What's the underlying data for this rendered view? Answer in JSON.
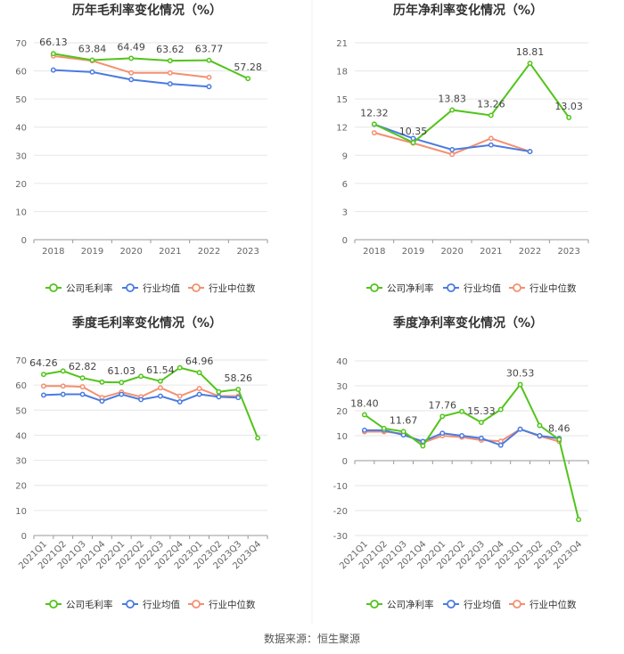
{
  "footer": {
    "source": "数据来源：恒生聚源"
  },
  "colors": {
    "company": "#52c41a",
    "industry_avg": "#4a7be0",
    "industry_median": "#f39070",
    "grid": "#e6e6e6",
    "axis": "#666666"
  },
  "chart_data": [
    {
      "type": "line",
      "title": "历年毛利率变化情况（%）",
      "categories": [
        "2018",
        "2019",
        "2020",
        "2021",
        "2022",
        "2023"
      ],
      "ylim": [
        0,
        70
      ],
      "yticks": [
        0,
        10,
        20,
        30,
        40,
        50,
        60,
        70
      ],
      "series": [
        {
          "name": "公司毛利率",
          "key": "company",
          "values": [
            66.13,
            63.84,
            64.49,
            63.62,
            63.77,
            57.28
          ]
        },
        {
          "name": "行业均值",
          "key": "industry_avg",
          "values": [
            60.3,
            59.6,
            56.9,
            55.4,
            54.4,
            null
          ]
        },
        {
          "name": "行业中位数",
          "key": "industry_median",
          "values": [
            65.3,
            63.6,
            59.3,
            59.3,
            57.7,
            null
          ]
        }
      ],
      "labels": [
        {
          "index": 0,
          "text": "66.13"
        },
        {
          "index": 1,
          "text": "63.84"
        },
        {
          "index": 2,
          "text": "64.49"
        },
        {
          "index": 3,
          "text": "63.62"
        },
        {
          "index": 4,
          "text": "63.77"
        },
        {
          "index": 5,
          "text": "57.28"
        }
      ]
    },
    {
      "type": "line",
      "title": "历年净利率变化情况（%）",
      "categories": [
        "2018",
        "2019",
        "2020",
        "2021",
        "2022",
        "2023"
      ],
      "ylim": [
        0,
        21
      ],
      "yticks": [
        0,
        3,
        6,
        9,
        12,
        15,
        18,
        21
      ],
      "series": [
        {
          "name": "公司净利率",
          "key": "company",
          "values": [
            12.32,
            10.35,
            13.83,
            13.26,
            18.81,
            13.03
          ]
        },
        {
          "name": "行业均值",
          "key": "industry_avg",
          "values": [
            12.3,
            10.8,
            9.6,
            10.1,
            9.4,
            null
          ]
        },
        {
          "name": "行业中位数",
          "key": "industry_median",
          "values": [
            11.4,
            10.3,
            9.1,
            10.8,
            9.4,
            null
          ]
        }
      ],
      "labels": [
        {
          "index": 0,
          "text": "12.32"
        },
        {
          "index": 1,
          "text": "10.35"
        },
        {
          "index": 2,
          "text": "13.83"
        },
        {
          "index": 3,
          "text": "13.26"
        },
        {
          "index": 4,
          "text": "18.81"
        },
        {
          "index": 5,
          "text": "13.03"
        }
      ]
    },
    {
      "type": "line",
      "title": "季度毛利率变化情况（%）",
      "categories": [
        "2021Q1",
        "2021Q2",
        "2021Q3",
        "2021Q4",
        "2022Q1",
        "2022Q2",
        "2022Q3",
        "2022Q4",
        "2023Q1",
        "2023Q2",
        "2023Q3",
        "2023Q4"
      ],
      "ylim": [
        0,
        70
      ],
      "yticks": [
        0,
        10,
        20,
        30,
        40,
        50,
        60,
        70
      ],
      "series": [
        {
          "name": "公司毛利率",
          "key": "company",
          "values": [
            64.26,
            65.6,
            62.82,
            61.2,
            61.03,
            63.5,
            61.54,
            66.9,
            64.96,
            57.3,
            58.26,
            38.9
          ]
        },
        {
          "name": "行业均值",
          "key": "industry_avg",
          "values": [
            56.0,
            56.3,
            56.3,
            53.6,
            56.3,
            54.2,
            55.6,
            53.3,
            56.3,
            55.3,
            55.0,
            null
          ]
        },
        {
          "name": "行业中位数",
          "key": "industry_median",
          "values": [
            59.6,
            59.6,
            59.3,
            55.0,
            57.2,
            55.3,
            58.9,
            55.6,
            58.6,
            55.6,
            55.6,
            null
          ]
        }
      ],
      "labels": [
        {
          "index": 0,
          "text": "64.26"
        },
        {
          "index": 2,
          "text": "62.82"
        },
        {
          "index": 4,
          "text": "61.03"
        },
        {
          "index": 6,
          "text": "61.54"
        },
        {
          "index": 8,
          "text": "64.96"
        },
        {
          "index": 10,
          "text": "58.26"
        }
      ]
    },
    {
      "type": "line",
      "title": "季度净利率变化情况（%）",
      "categories": [
        "2021Q1",
        "2021Q2",
        "2021Q3",
        "2021Q4",
        "2022Q1",
        "2022Q2",
        "2022Q3",
        "2022Q4",
        "2023Q1",
        "2023Q2",
        "2023Q3",
        "2023Q4"
      ],
      "ylim": [
        -30,
        40
      ],
      "yticks": [
        -30,
        -20,
        -10,
        0,
        10,
        20,
        30,
        40
      ],
      "series": [
        {
          "name": "公司净利率",
          "key": "company",
          "values": [
            18.4,
            12.9,
            11.67,
            5.9,
            17.76,
            19.7,
            15.33,
            20.5,
            30.53,
            14.1,
            8.46,
            -23.6
          ]
        },
        {
          "name": "行业均值",
          "key": "industry_avg",
          "values": [
            12.2,
            12.2,
            10.3,
            7.7,
            11.0,
            10.0,
            9.0,
            6.2,
            12.6,
            10.0,
            8.9,
            null
          ]
        },
        {
          "name": "行业中位数",
          "key": "industry_median",
          "values": [
            11.6,
            11.6,
            10.8,
            7.2,
            10.0,
            9.4,
            8.2,
            7.8,
            12.6,
            9.8,
            7.7,
            null
          ]
        }
      ],
      "labels": [
        {
          "index": 0,
          "text": "18.40"
        },
        {
          "index": 2,
          "text": "11.67"
        },
        {
          "index": 4,
          "text": "17.76"
        },
        {
          "index": 6,
          "text": "15.33"
        },
        {
          "index": 8,
          "text": "30.53"
        },
        {
          "index": 10,
          "text": "8.46"
        }
      ]
    }
  ]
}
